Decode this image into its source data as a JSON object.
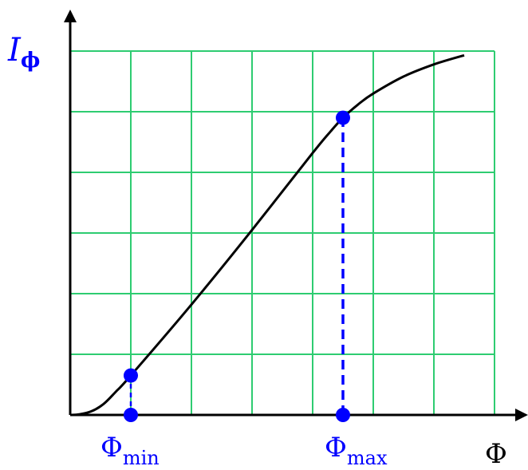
{
  "colors": {
    "grid": "#2ecc71",
    "curve": "#000000",
    "accent": "#0000ff"
  },
  "chart_data": {
    "type": "line",
    "grid": true,
    "xlim": [
      0,
      7
    ],
    "ylim": [
      0,
      6
    ],
    "y_axis_label": {
      "symbol": "I",
      "subscript": "ϕ"
    },
    "x_axis_label": "Φ",
    "markers": [
      {
        "symbol": "Φ",
        "subscript": "min",
        "x": 1,
        "y": 0.65
      },
      {
        "symbol": "Φ",
        "subscript": "max",
        "x": 4.5,
        "y": 4.9
      }
    ],
    "series": [
      {
        "x": [
          0,
          0.15,
          0.35,
          0.55,
          0.75,
          1,
          2,
          3,
          4,
          4.3,
          4.5,
          4.75,
          5,
          5.5,
          6,
          6.5
        ],
        "values": [
          0,
          0.01,
          0.06,
          0.18,
          0.38,
          0.65,
          1.82,
          3.05,
          4.32,
          4.68,
          4.9,
          5.12,
          5.3,
          5.58,
          5.78,
          5.93
        ]
      }
    ]
  }
}
